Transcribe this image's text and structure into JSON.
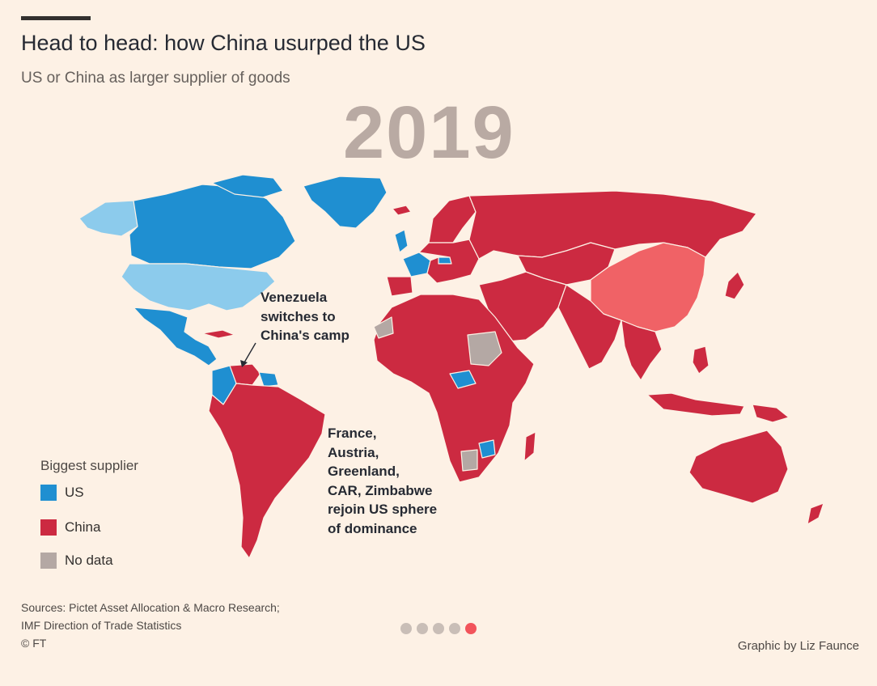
{
  "header": {
    "title": "Head to head: how China usurped the US",
    "subtitle": "US or China as larger supplier of goods",
    "year": "2019"
  },
  "annotations": {
    "venezuela": [
      "Venezuela",
      "switches to",
      "China's camp"
    ],
    "rejoin": [
      "France,",
      "Austria,",
      "Greenland,",
      "CAR, Zimbabwe",
      "rejoin US sphere",
      "of dominance"
    ]
  },
  "legend": {
    "title": "Biggest supplier",
    "items": [
      {
        "label": "US",
        "color": "#1f8fd1"
      },
      {
        "label": "China",
        "color": "#cc2a41"
      },
      {
        "label": "No data",
        "color": "#b4a8a4"
      }
    ]
  },
  "colors": {
    "us": "#1f8fd1",
    "us_light": "#8ccbec",
    "china": "#cc2a41",
    "china_highlight": "#f06266",
    "no_data": "#b4a8a4",
    "background": "#fdf1e5"
  },
  "footer": {
    "sources": [
      "Sources: Pictet Asset Allocation & Macro Research;",
      "IMF Direction of Trade Statistics",
      "© FT"
    ],
    "credit": "Graphic by Liz Faunce"
  },
  "pagination": {
    "total": 5,
    "active": 5
  }
}
